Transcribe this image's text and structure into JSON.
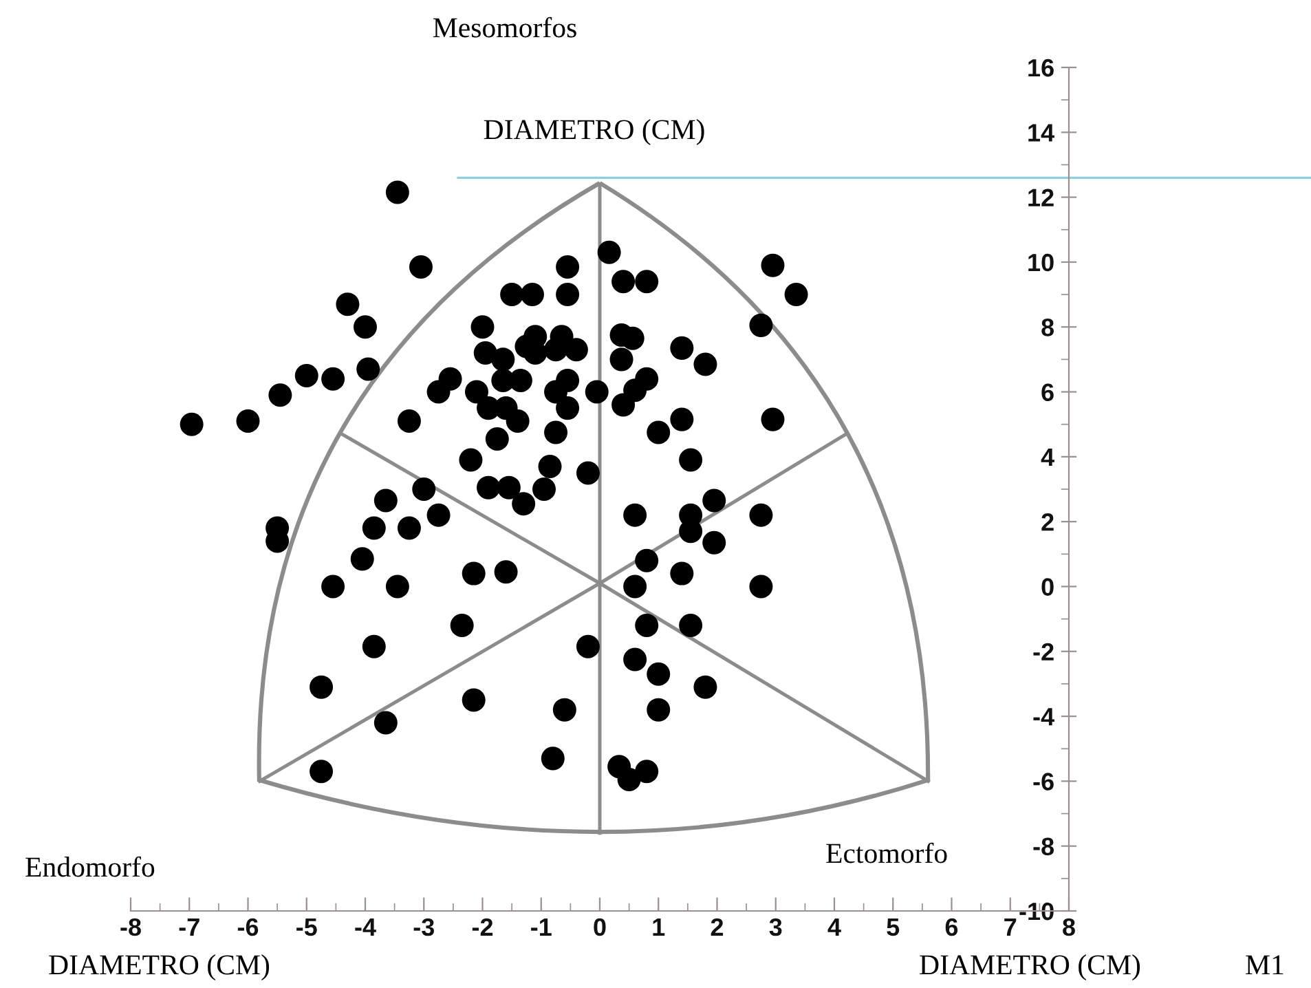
{
  "chart_data": {
    "type": "scatter",
    "annotations": [
      "Mesomorfos",
      "DIAMETRO (CM)",
      "Endomorfo",
      "Ectomorfo",
      "DIAMETRO (CM)",
      "DIAMETRO (CM)",
      "M1"
    ],
    "series": [
      {
        "color": "#8c8c8c",
        "type": "line",
        "marker": "none",
        "x": [
          0,
          0,
          0
        ],
        "values": [
          12.4,
          0.1,
          -7.6
        ]
      },
      {
        "color": "#8c8c8c",
        "type": "line",
        "marker": "none",
        "x": [
          -5.8,
          0,
          4.2
        ],
        "values": [
          -6.0,
          0.1,
          4.7
        ]
      },
      {
        "color": "#8c8c8c",
        "type": "line",
        "marker": "none",
        "x": [
          5.6,
          0,
          -4.4
        ],
        "values": [
          -6.0,
          0.1,
          4.7
        ]
      },
      {
        "x": [
          -6.96,
          -6.0,
          -5.45,
          -5.0,
          -4.55,
          -3.95,
          -4.0,
          -4.3,
          -3.05,
          -3.45,
          -3.25,
          -0.55,
          -1.5,
          -1.15,
          -0.55,
          -2.0,
          0.16,
          -1.95,
          -1.65,
          -1.25,
          -1.1,
          -1.1,
          -0.65,
          -0.4,
          -0.75,
          -2.55,
          -2.75,
          -2.1,
          -1.9,
          -1.6,
          -1.65,
          -1.35,
          -0.75,
          -0.55,
          -0.55,
          -0.05,
          -1.4,
          -0.75,
          -1.75,
          -2.2,
          -0.85,
          -0.2,
          -1.9,
          -1.55,
          -1.3,
          -0.95,
          -3.0,
          -2.75,
          -3.65,
          -3.85,
          -3.25,
          -5.5,
          -5.5,
          -4.05,
          -4.55,
          -3.45,
          -2.15,
          -1.6,
          -2.35,
          -0.2,
          -3.85,
          -4.75,
          -2.15,
          -3.65,
          -0.6,
          -0.8,
          -4.75,
          1.55,
          0.6,
          1.55,
          1.55,
          1.95,
          1.95,
          2.75,
          0.8,
          0.6,
          1.4,
          2.75,
          0.8,
          1.55,
          0.6,
          1.0,
          1.8,
          1.0,
          0.33,
          0.5,
          0.8,
          0.4,
          0.8,
          2.95,
          3.35,
          2.75,
          0.37,
          0.56,
          1.4,
          1.8,
          0.37,
          0.8,
          0.6,
          0.4,
          1.4,
          1.0,
          2.95
        ],
        "values": [
          5.0,
          5.1,
          5.9,
          6.5,
          6.4,
          6.7,
          8.0,
          8.7,
          9.85,
          12.15,
          5.1,
          9.85,
          9.0,
          9.0,
          9.0,
          8.0,
          10.3,
          7.2,
          7.0,
          7.4,
          7.7,
          7.2,
          7.7,
          7.3,
          7.3,
          6.4,
          6.0,
          6.0,
          5.5,
          5.5,
          6.35,
          6.35,
          6.0,
          6.35,
          5.5,
          6.0,
          5.1,
          4.75,
          4.55,
          3.9,
          3.7,
          3.5,
          3.05,
          3.05,
          2.55,
          3.0,
          3.0,
          2.2,
          2.65,
          1.8,
          1.8,
          1.8,
          1.4,
          0.85,
          0.0,
          0.0,
          0.4,
          0.45,
          -1.2,
          -1.85,
          -1.85,
          -3.1,
          -3.5,
          -4.2,
          -3.8,
          -5.3,
          -5.7,
          3.9,
          2.2,
          2.2,
          1.7,
          2.65,
          1.35,
          2.2,
          0.8,
          0.0,
          0.4,
          0.0,
          -1.2,
          -1.2,
          -2.25,
          -2.7,
          -3.1,
          -3.8,
          -5.55,
          -5.95,
          -5.7,
          9.4,
          9.4,
          9.9,
          9.0,
          8.05,
          7.75,
          7.65,
          7.35,
          6.85,
          7.0,
          6.4,
          6.05,
          5.6,
          5.15,
          4.75,
          5.15
        ],
        "color": "#000000",
        "marker": "circle"
      }
    ],
    "xlim": [
      -8,
      8
    ],
    "ylim": [
      -10,
      16
    ],
    "xticks": [
      -8,
      -7,
      -6,
      -5,
      -4,
      -3,
      -2,
      -1,
      0,
      1,
      2,
      3,
      4,
      5,
      6,
      7,
      8
    ],
    "yticks": [
      -10,
      -8,
      -6,
      -4,
      -2,
      0,
      2,
      4,
      6,
      8,
      10,
      12,
      14,
      16
    ],
    "ref_lines": [
      {
        "axis": "y",
        "value": 12.6,
        "color": "#8ecfdf"
      }
    ]
  }
}
